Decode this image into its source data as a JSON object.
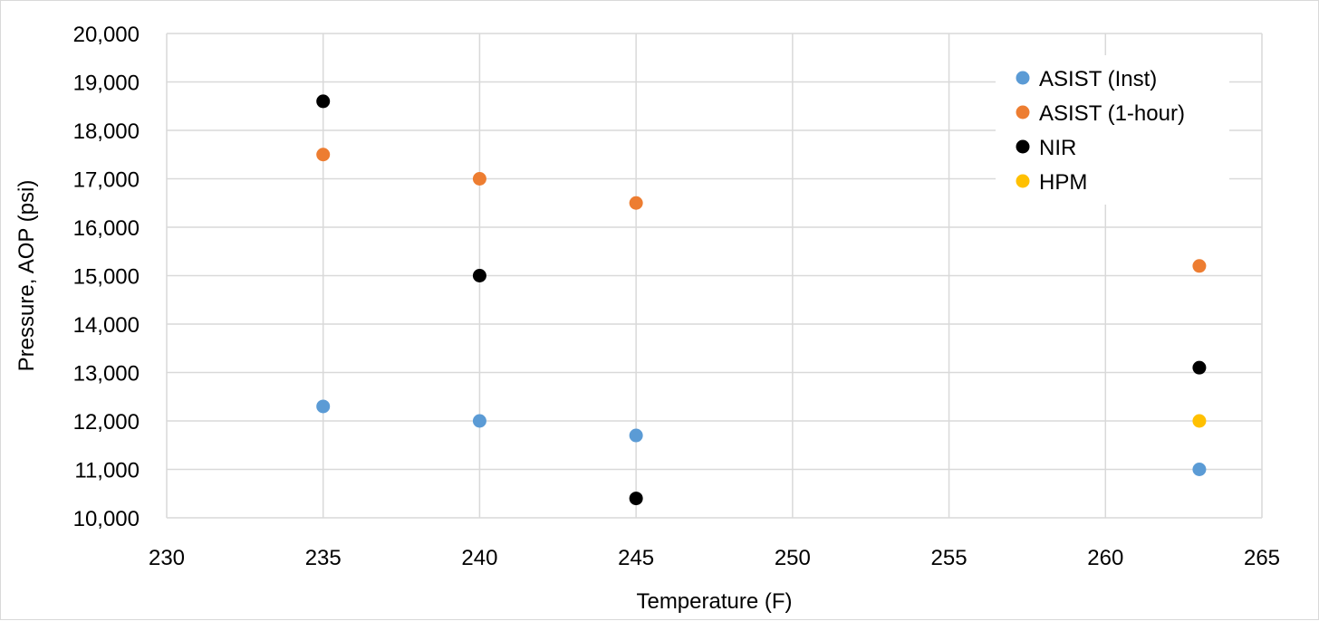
{
  "chart_data": {
    "type": "scatter",
    "title": "",
    "xlabel": "Temperature (F)",
    "ylabel": "Pressure, AOP (psi)",
    "xlim": [
      230,
      265
    ],
    "ylim": [
      10000,
      20000
    ],
    "x_ticks": [
      "230",
      "235",
      "240",
      "245",
      "250",
      "255",
      "260",
      "265"
    ],
    "y_ticks": [
      "10,000",
      "11,000",
      "12,000",
      "13,000",
      "14,000",
      "15,000",
      "16,000",
      "17,000",
      "18,000",
      "19,000",
      "20,000"
    ],
    "grid": true,
    "legend_position": "top-right",
    "series": [
      {
        "name": "ASIST (Inst)",
        "color": "#5B9BD5",
        "points": [
          {
            "x": 235,
            "y": 12300
          },
          {
            "x": 240,
            "y": 12000
          },
          {
            "x": 245,
            "y": 11700
          },
          {
            "x": 263,
            "y": 11000
          }
        ]
      },
      {
        "name": "ASIST (1-hour)",
        "color": "#ED7D31",
        "points": [
          {
            "x": 235,
            "y": 17500
          },
          {
            "x": 240,
            "y": 17000
          },
          {
            "x": 245,
            "y": 16500
          },
          {
            "x": 263,
            "y": 15200
          }
        ]
      },
      {
        "name": "NIR",
        "color": "#000000",
        "points": [
          {
            "x": 235,
            "y": 18600
          },
          {
            "x": 240,
            "y": 15000
          },
          {
            "x": 245,
            "y": 10400
          },
          {
            "x": 263,
            "y": 13100
          }
        ]
      },
      {
        "name": "HPM",
        "color": "#FFC000",
        "points": [
          {
            "x": 263,
            "y": 12000
          }
        ]
      }
    ]
  }
}
